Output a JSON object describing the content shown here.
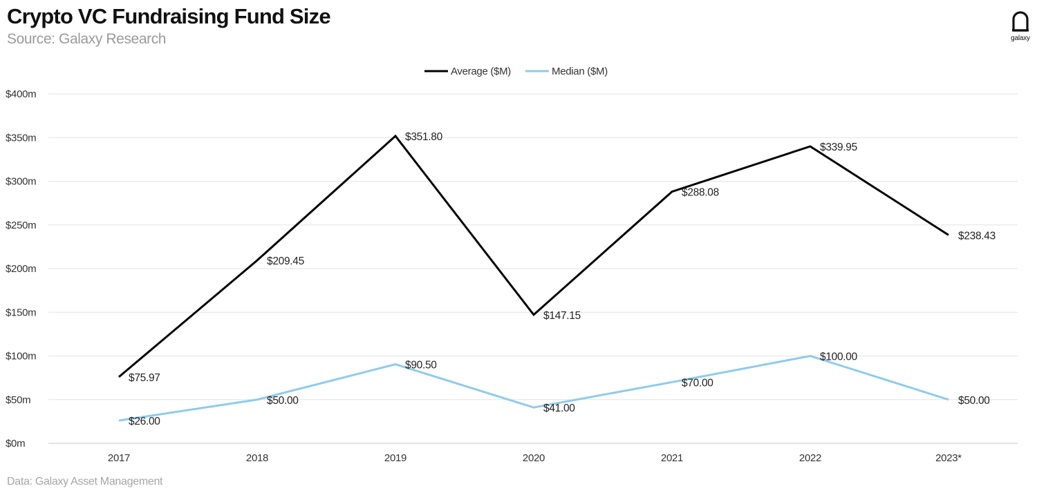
{
  "title": "Crypto VC Fundraising Fund Size",
  "subtitle": "Source: Galaxy Research",
  "footer": "Data: Galaxy Asset Management",
  "logo_text": "galaxy",
  "chart_data": {
    "type": "line",
    "categories": [
      "2017",
      "2018",
      "2019",
      "2020",
      "2021",
      "2022",
      "2023*"
    ],
    "ylim": [
      0,
      400
    ],
    "yticks": [
      0,
      50,
      100,
      150,
      200,
      250,
      300,
      350,
      400
    ],
    "ytick_labels": [
      "$0m",
      "$50m",
      "$100m",
      "$150m",
      "$200m",
      "$250m",
      "$300m",
      "$350m",
      "$400m"
    ],
    "grid": true,
    "legend_position": "top-center",
    "series": [
      {
        "name": "Average ($M)",
        "color": "#000000",
        "values": [
          75.97,
          209.45,
          351.8,
          147.15,
          288.08,
          339.95,
          238.43
        ],
        "labels": [
          "$75.97",
          "$209.45",
          "$351.80",
          "$147.15",
          "$288.08",
          "$339.95",
          "$238.43"
        ]
      },
      {
        "name": "Median ($M)",
        "color": "#8ecbec",
        "values": [
          26.0,
          50.0,
          90.5,
          41.0,
          70.0,
          100.0,
          50.0
        ],
        "labels": [
          "$26.00",
          "$50.00",
          "$90.50",
          "$41.00",
          "$70.00",
          "$100.00",
          "$50.00"
        ]
      }
    ]
  }
}
